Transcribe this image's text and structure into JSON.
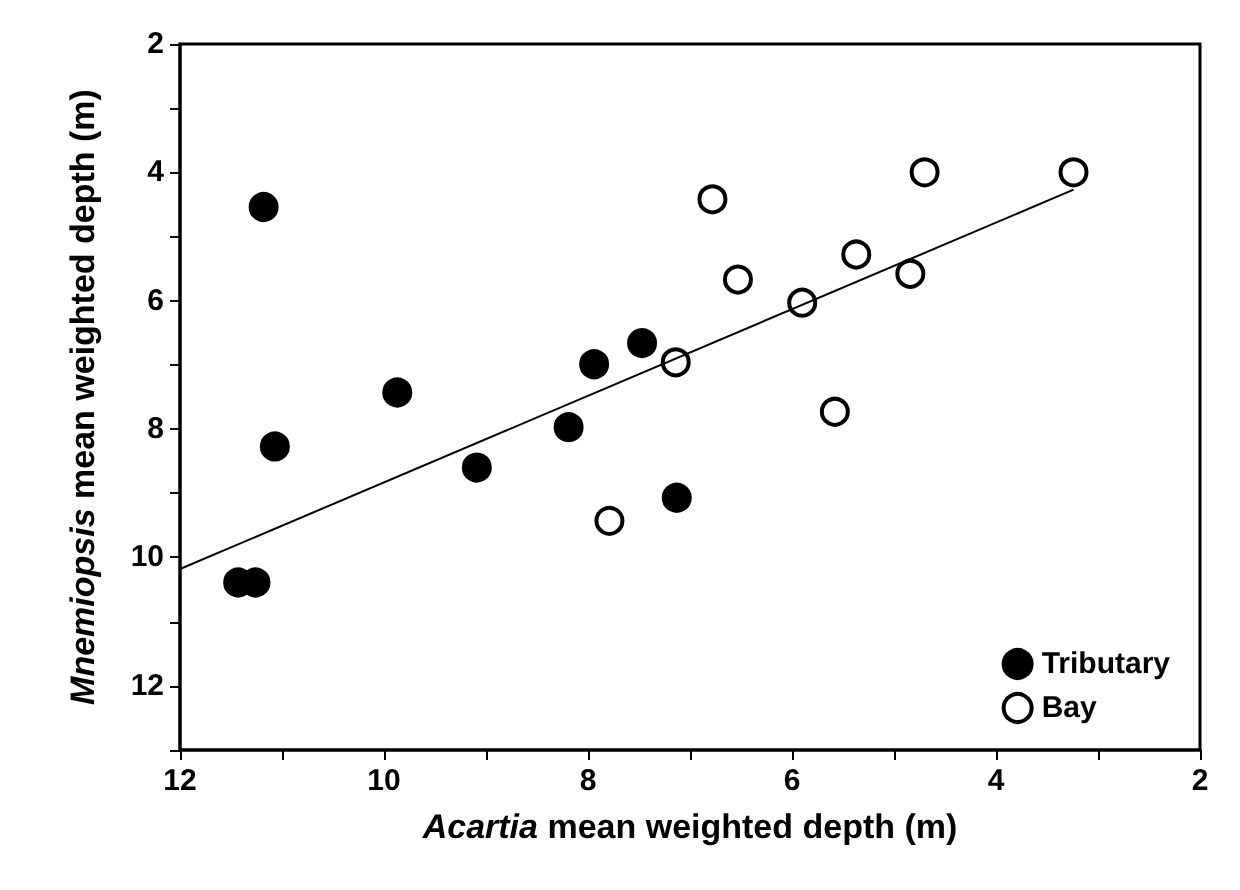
{
  "chart_data": {
    "type": "scatter",
    "xlabel": "Acartia mean weighted depth (m)",
    "ylabel": "Mnemiopsis mean weighted depth (m)",
    "xlim": [
      12,
      2
    ],
    "xticks": [
      12,
      {
        "value": 11,
        "label": null
      },
      10,
      {
        "value": 9,
        "label": null
      },
      8,
      {
        "value": 7,
        "label": null
      },
      6,
      {
        "value": 5,
        "label": null
      },
      4,
      {
        "value": 3,
        "label": null
      },
      2
    ],
    "ylim": [
      13,
      2
    ],
    "yticks": [
      2,
      {
        "value": 3,
        "label": null
      },
      4,
      {
        "value": 5,
        "label": null
      },
      6,
      {
        "value": 7,
        "label": null
      },
      8,
      {
        "value": 9,
        "label": null
      },
      10,
      {
        "value": 11,
        "label": null
      },
      12,
      {
        "value": 13,
        "label": null
      }
    ],
    "marker": "circle",
    "legend": "bottom right",
    "grid": false,
    "series": [
      {
        "name": "Tributary",
        "color": "#000000",
        "x": [
          11.18,
          11.07,
          9.87,
          9.09,
          8.19,
          7.94,
          7.47,
          7.13,
          11.43,
          11.26
        ],
        "values": [
          4.54,
          8.27,
          7.43,
          8.6,
          7.97,
          6.99,
          6.66,
          9.07,
          10.39,
          10.39
        ]
      },
      {
        "name": "Bay",
        "color": "#ffffff",
        "x": [
          7.14,
          7.79,
          6.78,
          6.53,
          5.9,
          5.37,
          5.58,
          4.84,
          4.7,
          3.24
        ],
        "values": [
          6.96,
          9.43,
          4.42,
          5.67,
          6.03,
          5.28,
          7.73,
          5.58,
          4.0,
          4.0
        ]
      },
      {
        "type": "line",
        "color": "#000000",
        "x": [
          12,
          3.24
        ],
        "values": [
          10.18,
          4.27
        ],
        "marker": "none"
      }
    ]
  }
}
